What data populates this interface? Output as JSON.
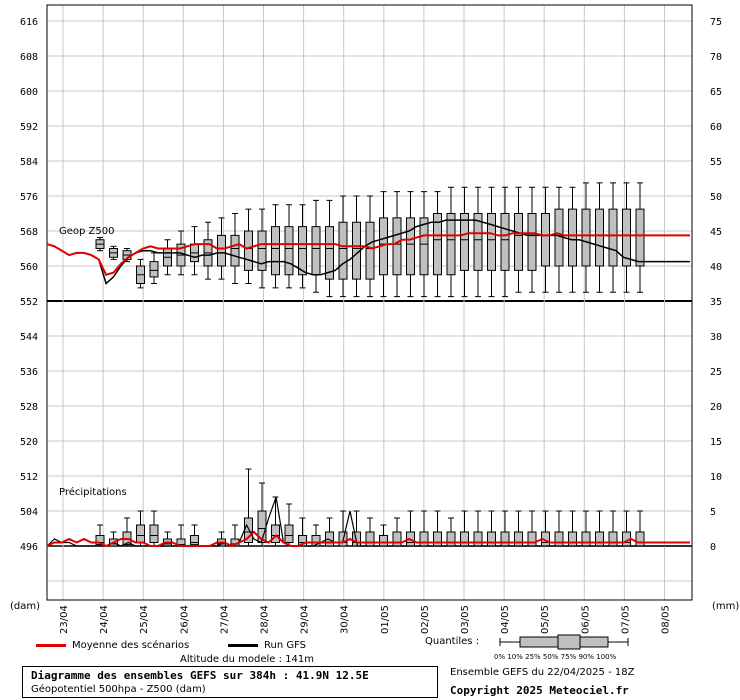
{
  "chart_data": {
    "type": "box",
    "upper_panel": {
      "label": "Geop Z500",
      "y_left_ticks": [
        552,
        560,
        568,
        576,
        584,
        592,
        600,
        608,
        616
      ],
      "y_right_ticks": [
        35,
        40,
        45,
        50,
        55,
        60,
        65,
        70,
        75
      ],
      "ylim": [
        552,
        619
      ],
      "mean": [
        565,
        564.5,
        563.5,
        562.5,
        563,
        563,
        562.5,
        561.5,
        558,
        558.5,
        560.5,
        562,
        563,
        564,
        564.5,
        564,
        564,
        564,
        564,
        564.5,
        565,
        565,
        565,
        564,
        564,
        564.5,
        565,
        564,
        564.5,
        565,
        565,
        565,
        565,
        565,
        565,
        565,
        565,
        565,
        565,
        565,
        564.5,
        564.5,
        564.5,
        564.5,
        564,
        564.5,
        565,
        565,
        566,
        566,
        566.5,
        567,
        567,
        567,
        567,
        567,
        567,
        567.5,
        567.5,
        567.5,
        567.5,
        567,
        567,
        567.5,
        567.5,
        567.5,
        567.5,
        567,
        567,
        567.5,
        567,
        567,
        567,
        567,
        567,
        567,
        567,
        567,
        567,
        567,
        567,
        567,
        567,
        567,
        567,
        567,
        567,
        567
      ],
      "gfs": [
        565,
        564.5,
        563.5,
        562.5,
        563,
        563,
        562.5,
        561.5,
        556,
        557.5,
        560,
        562,
        563,
        563.5,
        563.5,
        563,
        563,
        563,
        563,
        562.5,
        562,
        562.5,
        562.5,
        563,
        563,
        562.5,
        562,
        561.5,
        561,
        560.5,
        561,
        561,
        561,
        560.5,
        559.5,
        558.5,
        558,
        558,
        558.5,
        559,
        560.5,
        561.5,
        563,
        564.5,
        565.5,
        566,
        566.5,
        567,
        567.5,
        568,
        569,
        569.5,
        570,
        570,
        570.5,
        570.5,
        570.5,
        570.5,
        570.5,
        570,
        569.5,
        569,
        568.5,
        568,
        567.5,
        567,
        567,
        567,
        567,
        567,
        566.5,
        566,
        566,
        565.5,
        565,
        564.5,
        564,
        563.5,
        562,
        561.5,
        561,
        561,
        561,
        561,
        561,
        561,
        561,
        561
      ],
      "boxes": [
        [
          563.5,
          564,
          565,
          566,
          566.5
        ],
        [
          561.5,
          562,
          563,
          564,
          564.5
        ],
        [
          561,
          561.5,
          562.5,
          563.5,
          564
        ],
        [
          555,
          556,
          558,
          560,
          561.5
        ],
        [
          556,
          557.5,
          559,
          561,
          563
        ],
        [
          558,
          560,
          562,
          564,
          566
        ],
        [
          558,
          560,
          562.5,
          565,
          568
        ],
        [
          558,
          561,
          563,
          565,
          569
        ],
        [
          557,
          560,
          563,
          566,
          570
        ],
        [
          557,
          560,
          564,
          567,
          571
        ],
        [
          556,
          560,
          564,
          567,
          572
        ],
        [
          556,
          559,
          564,
          568,
          573
        ],
        [
          555,
          559,
          564,
          568,
          573
        ],
        [
          555,
          558,
          564,
          569,
          574
        ],
        [
          555,
          558,
          564,
          569,
          574
        ],
        [
          555,
          558,
          564,
          569,
          574
        ],
        [
          554,
          558,
          564,
          569,
          575
        ],
        [
          553,
          557,
          564,
          569,
          575
        ],
        [
          553,
          557,
          564,
          570,
          576
        ],
        [
          553,
          557,
          564,
          570,
          576
        ],
        [
          553,
          557,
          564,
          570,
          576
        ],
        [
          553,
          558,
          565,
          571,
          577
        ],
        [
          553,
          558,
          565,
          571,
          577
        ],
        [
          553,
          558,
          565,
          571,
          577
        ],
        [
          553,
          558,
          565,
          571,
          577
        ],
        [
          553,
          558,
          566,
          572,
          577
        ],
        [
          553,
          558,
          566,
          572,
          578
        ],
        [
          553,
          559,
          566,
          572,
          578
        ],
        [
          553,
          559,
          566,
          572,
          578
        ],
        [
          553,
          559,
          566,
          572,
          578
        ],
        [
          553,
          559,
          566,
          572,
          578
        ],
        [
          554,
          559,
          567,
          572,
          578
        ],
        [
          554,
          559,
          567,
          572,
          578
        ],
        [
          554,
          560,
          567,
          572,
          578
        ],
        [
          554,
          560,
          567,
          573,
          578
        ],
        [
          554,
          560,
          567,
          573,
          578
        ],
        [
          554,
          560,
          567,
          573,
          579
        ],
        [
          554,
          560,
          567,
          573,
          579
        ],
        [
          554,
          560,
          567,
          573,
          579
        ],
        [
          554,
          560,
          567,
          573,
          579
        ],
        [
          554,
          560,
          567,
          573,
          579
        ]
      ]
    },
    "lower_panel": {
      "label": "Précipitations",
      "y_left_ticks": [
        496,
        504,
        512,
        520
      ],
      "y_right_ticks": [
        0,
        5,
        10,
        15
      ],
      "mean": [
        0,
        0.5,
        0.5,
        1,
        0.5,
        1,
        0.5,
        0.5,
        0,
        0.5,
        1,
        1,
        0.5,
        0.5,
        0,
        0,
        0.5,
        0.5,
        0,
        0,
        0,
        0,
        0,
        0.5,
        0.5,
        0,
        0.5,
        1,
        2,
        1,
        0.5,
        1.5,
        0.5,
        0,
        0,
        0.5,
        0.5,
        0.5,
        0.5,
        0.5,
        0.5,
        1,
        0.5,
        0.5,
        0.5,
        0.5,
        0.5,
        0.5,
        0.5,
        1,
        0.5,
        0.5,
        0.5,
        0.5,
        0.5,
        0.5,
        0.5,
        0.5,
        0.5,
        0.5,
        0.5,
        0.5,
        0.5,
        0.5,
        0.5,
        0.5,
        0.5,
        1,
        0.5,
        0.5,
        0.5,
        0.5,
        0.5,
        0.5,
        0.5,
        0.5,
        0.5,
        0.5,
        0.5,
        1,
        0.5,
        0.5,
        0.5,
        0.5,
        0.5,
        0.5,
        0.5,
        0.5
      ],
      "gfs": [
        0,
        1,
        0.5,
        0.5,
        0,
        0,
        0,
        0,
        0,
        0.5,
        0,
        0.5,
        0,
        0,
        0,
        0,
        0,
        0,
        0,
        0,
        0,
        0,
        0,
        0,
        0.5,
        0,
        0.5,
        3,
        1,
        0.5,
        4,
        7,
        0.5,
        0,
        0,
        0,
        0,
        0.5,
        1,
        0.5,
        0.5,
        5,
        0,
        0,
        0,
        0,
        0,
        0,
        0,
        0,
        0,
        0,
        0,
        0,
        0,
        0,
        0,
        0,
        0,
        0,
        0,
        0,
        0,
        0,
        0,
        0,
        0,
        0,
        0,
        0,
        0,
        0,
        0,
        0,
        0,
        0,
        0,
        0,
        0,
        0,
        0,
        0,
        0,
        0,
        0,
        0,
        0,
        0
      ],
      "boxes": [
        [
          0,
          0.2,
          0.5,
          1.5,
          3
        ],
        [
          0,
          0,
          0.3,
          1,
          2
        ],
        [
          0,
          0.2,
          1,
          2,
          4
        ],
        [
          0,
          0.5,
          1.5,
          3,
          5
        ],
        [
          0,
          0.5,
          1.5,
          3,
          5
        ],
        [
          0,
          0,
          0.3,
          1,
          2
        ],
        [
          0,
          0,
          0.2,
          1,
          3
        ],
        [
          0,
          0.2,
          0.5,
          1.5,
          3
        ],
        [
          0,
          0,
          0,
          0,
          0
        ],
        [
          0,
          0,
          0.3,
          1,
          2
        ],
        [
          0,
          0,
          0.3,
          1,
          3
        ],
        [
          0,
          0.5,
          2,
          4,
          11
        ],
        [
          0,
          0.5,
          2.5,
          5,
          9
        ],
        [
          0,
          0.5,
          1.5,
          3,
          7
        ],
        [
          0,
          0.5,
          1.5,
          3,
          6
        ],
        [
          0,
          0,
          0.5,
          1.5,
          4
        ],
        [
          0,
          0,
          0.5,
          1.5,
          3
        ],
        [
          0,
          0,
          0.5,
          2,
          4
        ],
        [
          0,
          0,
          0.5,
          2,
          5
        ],
        [
          0,
          0,
          0.5,
          2,
          5
        ],
        [
          0,
          0,
          0.5,
          2,
          4
        ],
        [
          0,
          0,
          0.5,
          1.5,
          3
        ],
        [
          0,
          0,
          0.5,
          2,
          4
        ],
        [
          0,
          0,
          0.5,
          2,
          5
        ],
        [
          0,
          0,
          0.5,
          2,
          5
        ],
        [
          0,
          0,
          0.5,
          2,
          5
        ],
        [
          0,
          0,
          0.5,
          2,
          4
        ],
        [
          0,
          0,
          0.5,
          2,
          5
        ],
        [
          0,
          0,
          0.5,
          2,
          5
        ],
        [
          0,
          0,
          0.5,
          2,
          5
        ],
        [
          0,
          0,
          0.5,
          2,
          5
        ],
        [
          0,
          0,
          0.5,
          2,
          5
        ],
        [
          0,
          0,
          0.5,
          2,
          5
        ],
        [
          0,
          0,
          0.5,
          2,
          5
        ],
        [
          0,
          0,
          0.5,
          2,
          5
        ],
        [
          0,
          0,
          0.5,
          2,
          5
        ],
        [
          0,
          0,
          0.5,
          2,
          5
        ],
        [
          0,
          0,
          0.5,
          2,
          5
        ],
        [
          0,
          0,
          0.5,
          2,
          5
        ],
        [
          0,
          0,
          0.5,
          2,
          5
        ],
        [
          0,
          0,
          0.5,
          2,
          5
        ]
      ]
    },
    "x_tick_labels": [
      "23/04",
      "24/04",
      "25/04",
      "26/04",
      "27/04",
      "28/04",
      "29/04",
      "30/04",
      "01/05",
      "02/05",
      "03/05",
      "04/05",
      "05/05",
      "06/05",
      "07/05",
      "08/05"
    ],
    "y_left_unit": "(dam)",
    "y_right_unit": "(mm)"
  },
  "legend": {
    "mean_label": "Moyenne des scénarios",
    "gfs_label": "Run GFS",
    "quantiles_label": "Quantiles :",
    "quantiles_scale": "0%  10% 25% 50% 75% 90% 100%",
    "mean_color": "#e00000",
    "gfs_color": "#000000",
    "box_color": "#c0c0c0"
  },
  "captions": {
    "altitude": "Altitude du modele : 141m",
    "title": "Diagramme des ensembles GEFS sur 384h : 41.9N 12.5E",
    "subtitle": "Géopotentiel 500hpa - Z500 (dam)",
    "run": "Ensemble GEFS du 22/04/2025 - 18Z",
    "copyright": "Copyright 2025 Meteociel.fr"
  }
}
